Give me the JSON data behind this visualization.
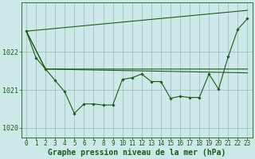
{
  "background_color": "#cce8e8",
  "plot_bg_color": "#cce8e8",
  "line_color": "#1a5c1a",
  "grid_color": "#99bbbb",
  "xlabel": "Graphe pression niveau de la mer (hPa)",
  "xlabel_fontsize": 7,
  "ylabel_fontsize": 6,
  "tick_fontsize": 5.5,
  "xlim": [
    -0.5,
    23.5
  ],
  "ylim": [
    1019.75,
    1023.3
  ],
  "yticks": [
    1020,
    1021,
    1022
  ],
  "xticks": [
    0,
    1,
    2,
    3,
    4,
    5,
    6,
    7,
    8,
    9,
    10,
    11,
    12,
    13,
    14,
    15,
    16,
    17,
    18,
    19,
    20,
    21,
    22,
    23
  ],
  "line1_x": [
    0,
    1,
    2,
    3,
    4,
    5,
    6,
    7,
    8,
    9,
    10,
    11,
    12,
    13,
    14,
    15,
    16,
    17,
    18,
    19,
    20,
    21,
    22,
    23
  ],
  "line1_y": [
    1022.55,
    1021.85,
    1021.55,
    1021.25,
    1020.95,
    1020.38,
    1020.63,
    1020.63,
    1020.6,
    1020.6,
    1021.28,
    1021.32,
    1021.42,
    1021.22,
    1021.22,
    1020.78,
    1020.83,
    1020.8,
    1020.8,
    1021.42,
    1021.02,
    1021.88,
    1022.6,
    1022.88
  ],
  "line2_x": [
    0,
    23
  ],
  "line2_y": [
    1022.55,
    1023.1
  ],
  "line3_x": [
    0,
    2,
    23
  ],
  "line3_y": [
    1022.55,
    1021.55,
    1021.45
  ],
  "line4_x": [
    0,
    2,
    23
  ],
  "line4_y": [
    1022.55,
    1021.55,
    1021.55
  ]
}
